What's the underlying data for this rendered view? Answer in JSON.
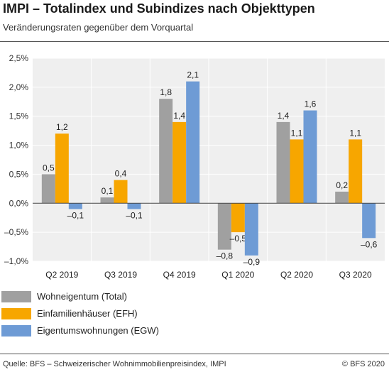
{
  "header": {
    "title": "IMPI – Totalindex und Subindizes nach Objekttypen",
    "subtitle": "Veränderungsraten gegenüber dem Vorquartal"
  },
  "chart_data": {
    "type": "bar",
    "categories": [
      "Q2 2019",
      "Q3 2019",
      "Q4 2019",
      "Q1 2020",
      "Q2 2020",
      "Q3 2020"
    ],
    "series": [
      {
        "name": "Wohneigentum (Total)",
        "color": "#a0a0a0",
        "values": [
          0.5,
          0.1,
          1.8,
          -0.8,
          1.4,
          0.2
        ],
        "labels": [
          "0,5",
          "0,1",
          "1,8",
          "–0,8",
          "1,4",
          "0,2"
        ]
      },
      {
        "name": "Einfamilienhäuser (EFH)",
        "color": "#f7a600",
        "values": [
          1.2,
          0.4,
          1.4,
          -0.5,
          1.1,
          1.1
        ],
        "labels": [
          "1,2",
          "0,4",
          "1,4",
          "–0,5",
          "1,1",
          "1,1"
        ]
      },
      {
        "name": "Eigentumswohnungen (EGW)",
        "color": "#6e9bd5",
        "values": [
          -0.1,
          -0.1,
          2.1,
          -0.9,
          1.6,
          -0.6
        ],
        "labels": [
          "–0,1",
          "–0,1",
          "2,1",
          "–0,9",
          "1,6",
          "–0,6"
        ]
      }
    ],
    "ylim": [
      -1.0,
      2.5
    ],
    "yticks": [
      2.5,
      2.0,
      1.5,
      1.0,
      0.5,
      0.0,
      -0.5,
      -1.0
    ],
    "ytick_labels": [
      "2,5%",
      "2,0%",
      "1,5%",
      "1,0%",
      "0,5%",
      "0,0%",
      "–0,5%",
      "–1,0%"
    ],
    "grid": true,
    "legend_position": "bottom-left"
  },
  "footer": {
    "source": "Quelle: BFS – Schweizerischer Wohnimmobilienpreisindex, IMPI",
    "copyright": "© BFS 2020"
  }
}
